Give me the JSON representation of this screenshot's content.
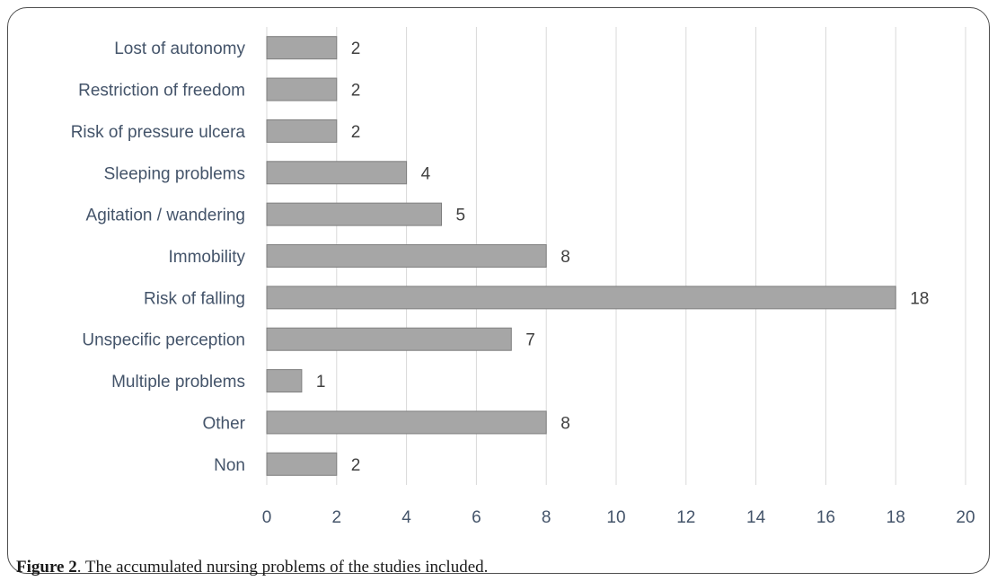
{
  "caption": {
    "label": "Figure 2",
    "text": ". The accumulated nursing problems of the studies included."
  },
  "chart_data": {
    "type": "bar",
    "orientation": "horizontal",
    "categories": [
      "Lost of autonomy",
      "Restriction of freedom",
      "Risk of pressure ulcera",
      "Sleeping problems",
      "Agitation / wandering",
      "Immobility",
      "Risk of falling",
      "Unspecific perception",
      "Multiple problems",
      "Other",
      "Non"
    ],
    "values": [
      2,
      2,
      2,
      4,
      5,
      8,
      18,
      7,
      1,
      8,
      2
    ],
    "xlim": [
      0,
      20
    ],
    "xticks": [
      0,
      2,
      4,
      6,
      8,
      10,
      12,
      14,
      16,
      18,
      20
    ],
    "grid": "vertical",
    "data_labels": true,
    "colors": {
      "bar": "#a6a6a6",
      "bar_edge": "#7f7f7f",
      "grid": "#d9d9d9",
      "axis_text": "#44546a"
    }
  }
}
